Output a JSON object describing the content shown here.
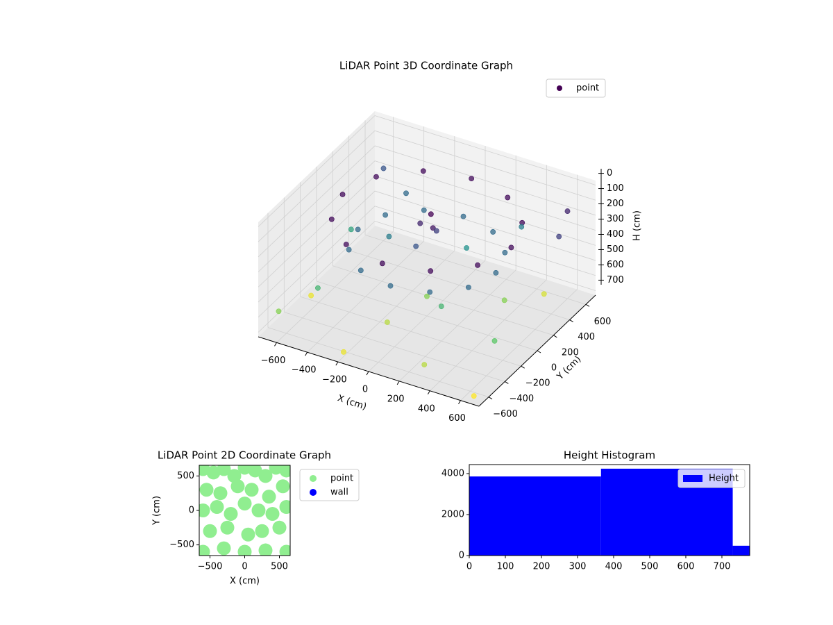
{
  "chart_data": [
    {
      "type": "scatter3d",
      "title": "LiDAR Point 3D Coordinate Graph",
      "xlabel": "X (cm)",
      "ylabel": "Y (cm)",
      "zlabel": "H (cm)",
      "xlim": [
        -720,
        720
      ],
      "ylim": [
        -720,
        720
      ],
      "zlim": [
        -30,
        730
      ],
      "zinvert": true,
      "xticks": [
        {
          "value": -600,
          "label": "−600"
        },
        {
          "value": -400,
          "label": "−400"
        },
        {
          "value": -200,
          "label": "−200"
        },
        0,
        200,
        400,
        600
      ],
      "yticks": [
        {
          "value": -600,
          "label": "−600"
        },
        {
          "value": -400,
          "label": "−400"
        },
        {
          "value": -200,
          "label": "−200"
        },
        0,
        200,
        400,
        600
      ],
      "zticks": [
        0,
        100,
        200,
        300,
        400,
        500,
        600,
        700
      ],
      "colormap": "viridis",
      "legend": "upper right",
      "grid": true,
      "series": [
        {
          "name": "point",
          "color": "#440154",
          "x": [
            550,
            476,
            275,
            0,
            -275,
            -476,
            -550,
            -476,
            -275,
            0,
            275,
            476,
            450,
            390,
            225,
            0,
            -225,
            -390,
            -450,
            -390,
            -225,
            0,
            225,
            390,
            0,
            50,
            -60,
            20,
            -40,
            600,
            650,
            -650,
            -500,
            300,
            -200,
            600,
            -600,
            100,
            -300,
            400,
            200,
            -100,
            500,
            -400,
            650,
            0,
            -600,
            300,
            -650
          ],
          "y": [
            0,
            275,
            476,
            550,
            476,
            275,
            0,
            -275,
            -476,
            -550,
            -476,
            -275,
            0,
            225,
            390,
            450,
            390,
            225,
            0,
            -225,
            -390,
            -450,
            -390,
            -225,
            50,
            -20,
            30,
            80,
            -60,
            600,
            400,
            -600,
            -400,
            -600,
            -650,
            -300,
            200,
            300,
            100,
            200,
            -200,
            -300,
            500,
            500,
            -650,
            0,
            600,
            600,
            -200
          ],
          "values": [
            100,
            100,
            100,
            100,
            100,
            100,
            100,
            100,
            100,
            100,
            100,
            100,
            300,
            300,
            300,
            300,
            300,
            300,
            300,
            300,
            300,
            300,
            300,
            300,
            80,
            120,
            150,
            200,
            250,
            150,
            200,
            600,
            500,
            650,
            700,
            550,
            450,
            400,
            350,
            600,
            500,
            650,
            680,
            300,
            720,
            600,
            250,
            350,
            700
          ]
        }
      ]
    },
    {
      "type": "scatter",
      "title": "LiDAR Point 2D Coordinate Graph",
      "xlabel": "X (cm)",
      "ylabel": "Y (cm)",
      "xlim": [
        -655,
        655
      ],
      "ylim": [
        -655,
        655
      ],
      "xticks": [
        {
          "value": -500,
          "label": "−500"
        },
        0,
        500
      ],
      "yticks": [
        {
          "value": -500,
          "label": "−500"
        },
        0,
        500
      ],
      "legend": "outside right",
      "series": [
        {
          "name": "point",
          "color": "#90ee90",
          "x": [
            -600,
            -450,
            -300,
            -150,
            0,
            150,
            300,
            450,
            600,
            -550,
            -350,
            -100,
            100,
            350,
            550,
            -600,
            -400,
            -200,
            0,
            200,
            400,
            600,
            -500,
            -250,
            50,
            250,
            500,
            -600,
            -300,
            0,
            300,
            600
          ],
          "values": [
            600,
            550,
            600,
            500,
            620,
            580,
            500,
            620,
            580,
            300,
            250,
            350,
            300,
            200,
            350,
            0,
            50,
            -50,
            100,
            0,
            -50,
            50,
            -300,
            -250,
            -350,
            -300,
            -250,
            -600,
            -550,
            -600,
            -580,
            -600
          ]
        },
        {
          "name": "wall",
          "color": "#0000ff",
          "x": [],
          "values": []
        }
      ]
    },
    {
      "type": "histogram",
      "title": "Height Histogram",
      "xlim": [
        0,
        777
      ],
      "ylim": [
        0,
        4440
      ],
      "xticks": [
        0,
        100,
        200,
        300,
        400,
        500,
        600,
        700
      ],
      "yticks": [
        0,
        2000,
        4000
      ],
      "legend": "upper right",
      "bins": [
        0,
        365,
        730,
        1095
      ],
      "series": [
        {
          "name": "Height",
          "color": "#0000ff",
          "values": [
            3860,
            4240,
            480
          ]
        }
      ]
    }
  ]
}
